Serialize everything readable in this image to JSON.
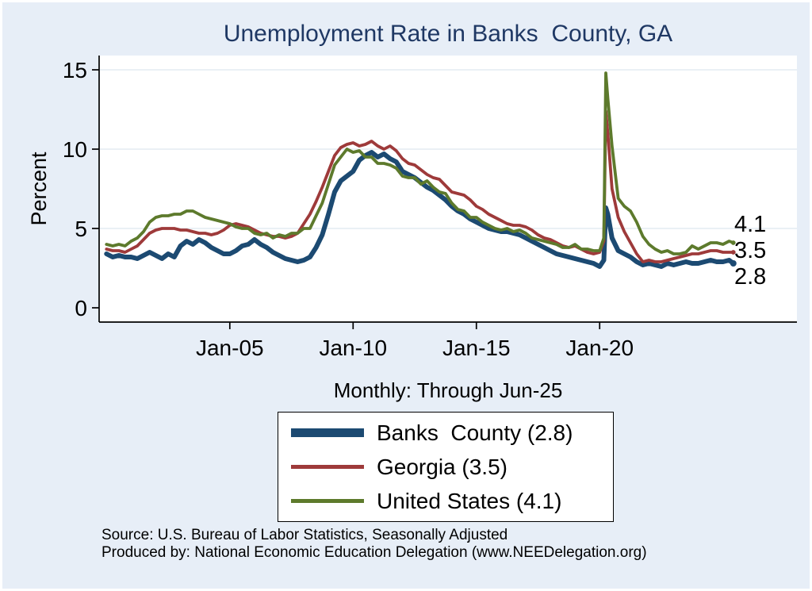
{
  "colors": {
    "background": "#e7eef7",
    "plot_background": "#ffffff",
    "title": "#1f3864",
    "axis": "#000000",
    "gridline": "#e4ebf2"
  },
  "caption": "Monthly: Through Jun-25",
  "source": {
    "line1": "Source: U.S. Bureau of Labor Statistics, Seasonally Adjusted",
    "line2": "Produced by: National Economic Education Delegation (www.NEEDelegation.org)"
  },
  "end_labels": {
    "united_states": "4.1",
    "georgia": "3.5",
    "banks_county": "2.8"
  },
  "legend": {
    "items": [
      {
        "label": "Banks  County (2.8)"
      },
      {
        "label": "Georgia (3.5)"
      },
      {
        "label": "United States (4.1)"
      }
    ]
  },
  "chart_data": {
    "type": "line",
    "title": "Unemployment Rate in Banks  County, GA",
    "xlabel": "",
    "ylabel": "Percent",
    "xlim": [
      1999.7,
      2028.0
    ],
    "ylim": [
      0,
      15
    ],
    "grid": true,
    "legend_position": "bottom-center",
    "yticks": [
      {
        "v": 0,
        "label": "0"
      },
      {
        "v": 5,
        "label": "5"
      },
      {
        "v": 10,
        "label": "10"
      },
      {
        "v": 15,
        "label": "15"
      }
    ],
    "xticks": [
      {
        "v": 2005,
        "label": "Jan-05"
      },
      {
        "v": 2010,
        "label": "Jan-10"
      },
      {
        "v": 2015,
        "label": "Jan-15"
      },
      {
        "v": 2020,
        "label": "Jan-20"
      }
    ],
    "x": [
      2000,
      2000.25,
      2000.5,
      2000.75,
      2001,
      2001.25,
      2001.5,
      2001.75,
      2002,
      2002.25,
      2002.5,
      2002.75,
      2003,
      2003.25,
      2003.5,
      2003.75,
      2004,
      2004.25,
      2004.5,
      2004.75,
      2005,
      2005.25,
      2005.5,
      2005.75,
      2006,
      2006.25,
      2006.5,
      2006.75,
      2007,
      2007.25,
      2007.5,
      2007.75,
      2008,
      2008.25,
      2008.5,
      2008.75,
      2009,
      2009.25,
      2009.5,
      2009.75,
      2010,
      2010.25,
      2010.5,
      2010.75,
      2011,
      2011.25,
      2011.5,
      2011.75,
      2012,
      2012.25,
      2012.5,
      2012.75,
      2013,
      2013.25,
      2013.5,
      2013.75,
      2014,
      2014.25,
      2014.5,
      2014.75,
      2015,
      2015.25,
      2015.5,
      2015.75,
      2016,
      2016.25,
      2016.5,
      2016.75,
      2017,
      2017.25,
      2017.5,
      2017.75,
      2018,
      2018.25,
      2018.5,
      2018.75,
      2019,
      2019.25,
      2019.5,
      2019.75,
      2020,
      2020.17,
      2020.25,
      2020.33,
      2020.5,
      2020.75,
      2021,
      2021.25,
      2021.5,
      2021.75,
      2022,
      2022.25,
      2022.5,
      2022.75,
      2023,
      2023.25,
      2023.5,
      2023.75,
      2024,
      2024.25,
      2024.5,
      2024.75,
      2025,
      2025.25,
      2025.42
    ],
    "series": [
      {
        "id": "banks-county",
        "name": "Banks  County",
        "latest_value": 2.8,
        "color": "#1c4a72",
        "width": 6,
        "values": [
          3.4,
          3.2,
          3.3,
          3.2,
          3.2,
          3.1,
          3.3,
          3.5,
          3.3,
          3.1,
          3.4,
          3.2,
          3.9,
          4.2,
          4.0,
          4.3,
          4.1,
          3.8,
          3.6,
          3.4,
          3.4,
          3.6,
          3.9,
          4.0,
          4.3,
          4.0,
          3.8,
          3.5,
          3.3,
          3.1,
          3.0,
          2.9,
          3.0,
          3.2,
          3.8,
          4.6,
          5.9,
          7.3,
          8.0,
          8.3,
          8.6,
          9.3,
          9.6,
          9.8,
          9.5,
          9.7,
          9.4,
          9.2,
          8.6,
          8.4,
          8.2,
          7.9,
          7.6,
          7.4,
          7.1,
          6.8,
          6.4,
          6.1,
          5.9,
          5.6,
          5.4,
          5.2,
          5.0,
          4.9,
          4.8,
          4.8,
          4.7,
          4.6,
          4.4,
          4.2,
          4.0,
          3.8,
          3.6,
          3.4,
          3.3,
          3.2,
          3.1,
          3.0,
          2.9,
          2.8,
          2.6,
          3.0,
          6.3,
          5.9,
          4.4,
          3.6,
          3.4,
          3.2,
          2.9,
          2.7,
          2.8,
          2.7,
          2.6,
          2.8,
          2.7,
          2.8,
          2.9,
          2.8,
          2.8,
          2.9,
          3.0,
          2.9,
          2.9,
          3.0,
          2.8
        ]
      },
      {
        "id": "georgia",
        "name": "Georgia",
        "latest_value": 3.5,
        "color": "#9e3a3a",
        "width": 3.8,
        "values": [
          3.7,
          3.6,
          3.6,
          3.5,
          3.7,
          3.9,
          4.3,
          4.7,
          4.9,
          5.0,
          5.0,
          5.0,
          4.9,
          4.9,
          4.8,
          4.7,
          4.7,
          4.6,
          4.7,
          4.9,
          5.2,
          5.3,
          5.2,
          5.1,
          4.9,
          4.7,
          4.6,
          4.5,
          4.5,
          4.4,
          4.5,
          4.7,
          5.3,
          5.9,
          6.7,
          7.6,
          8.6,
          9.6,
          10.1,
          10.3,
          10.4,
          10.2,
          10.3,
          10.5,
          10.2,
          10.0,
          10.2,
          9.9,
          9.4,
          9.1,
          9.0,
          8.7,
          8.4,
          8.2,
          8.1,
          7.7,
          7.3,
          7.2,
          7.1,
          6.8,
          6.4,
          6.2,
          5.9,
          5.7,
          5.5,
          5.3,
          5.2,
          5.2,
          5.1,
          4.9,
          4.6,
          4.4,
          4.3,
          4.1,
          3.9,
          3.8,
          3.9,
          3.7,
          3.5,
          3.4,
          3.5,
          4.2,
          12.4,
          11.0,
          7.5,
          5.7,
          4.8,
          4.1,
          3.4,
          2.9,
          3.0,
          2.9,
          2.9,
          3.0,
          3.1,
          3.2,
          3.3,
          3.4,
          3.4,
          3.5,
          3.6,
          3.6,
          3.5,
          3.5,
          3.5
        ]
      },
      {
        "id": "united-states",
        "name": "United States",
        "latest_value": 4.1,
        "color": "#5d7a2c",
        "width": 3.8,
        "values": [
          4.0,
          3.9,
          4.0,
          3.9,
          4.2,
          4.4,
          4.8,
          5.4,
          5.7,
          5.8,
          5.8,
          5.9,
          5.9,
          6.1,
          6.1,
          5.9,
          5.7,
          5.6,
          5.5,
          5.4,
          5.3,
          5.1,
          5.0,
          5.0,
          4.7,
          4.6,
          4.7,
          4.4,
          4.6,
          4.5,
          4.7,
          4.7,
          5.0,
          5.0,
          5.8,
          6.6,
          7.8,
          9.0,
          9.5,
          10.0,
          9.8,
          9.9,
          9.5,
          9.5,
          9.1,
          9.1,
          9.0,
          8.8,
          8.3,
          8.2,
          8.2,
          7.8,
          8.0,
          7.6,
          7.3,
          7.2,
          6.6,
          6.2,
          6.1,
          5.7,
          5.7,
          5.4,
          5.2,
          5.0,
          4.9,
          5.0,
          4.8,
          4.9,
          4.7,
          4.4,
          4.3,
          4.2,
          4.1,
          4.0,
          3.8,
          3.8,
          4.0,
          3.7,
          3.7,
          3.6,
          3.6,
          4.4,
          14.8,
          13.2,
          10.2,
          6.9,
          6.4,
          6.1,
          5.4,
          4.5,
          4.0,
          3.7,
          3.5,
          3.6,
          3.4,
          3.4,
          3.5,
          3.9,
          3.7,
          3.9,
          4.1,
          4.1,
          4.0,
          4.2,
          4.1
        ]
      }
    ]
  }
}
